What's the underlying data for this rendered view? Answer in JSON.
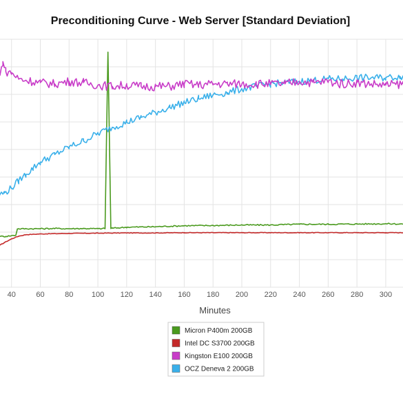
{
  "chart_data": {
    "type": "line",
    "title": "Preconditioning Curve - Web Server [Standard Deviation]",
    "xlabel": "Minutes",
    "ylabel": "",
    "xlim": [
      32,
      312
    ],
    "ylim": [
      0,
      100
    ],
    "x_ticks": [
      40,
      60,
      80,
      100,
      120,
      140,
      160,
      180,
      200,
      220,
      240,
      260,
      280,
      300
    ],
    "y_tick_labels_visible": false,
    "grid": true,
    "legend_position": "bottom-center",
    "colors": {
      "Micron P400m 200GB": "#4a9a1e",
      "Intel DC S3700 200GB": "#c42a2a",
      "Kingston E100 200GB": "#c83cc8",
      "OCZ Deneva 2 200GB": "#3ab0ea"
    },
    "series": [
      {
        "name": "Micron P400m 200GB",
        "x": [
          32,
          36,
          40,
          43,
          44,
          50,
          60,
          70,
          80,
          90,
          100,
          105,
          106,
          107,
          108,
          109,
          110,
          120,
          140,
          160,
          180,
          200,
          220,
          240,
          260,
          280,
          300,
          312
        ],
        "values": [
          20.5,
          20.5,
          20.8,
          21.0,
          23.5,
          23.6,
          23.6,
          23.7,
          23.6,
          23.7,
          23.6,
          23.7,
          60.0,
          94.8,
          60.0,
          23.8,
          23.8,
          24.2,
          24.4,
          24.8,
          24.9,
          25.1,
          25.1,
          25.4,
          25.4,
          25.5,
          25.6,
          25.5
        ]
      },
      {
        "name": "Intel DC S3700 200GB",
        "x": [
          32,
          35,
          40,
          45,
          50,
          60,
          80,
          100,
          120,
          140,
          160,
          180,
          200,
          220,
          240,
          260,
          280,
          300,
          312
        ],
        "values": [
          17.0,
          18.0,
          19.5,
          20.6,
          21.2,
          21.5,
          21.7,
          21.8,
          21.9,
          21.9,
          22.0,
          22.0,
          22.0,
          22.0,
          22.0,
          22.0,
          22.0,
          22.0,
          22.0
        ]
      },
      {
        "name": "Kingston E100 200GB",
        "x": [
          32,
          34,
          36,
          40,
          45,
          50,
          60,
          70,
          80,
          90,
          100,
          110,
          120,
          130,
          140,
          150,
          160,
          170,
          180,
          190,
          200,
          210,
          220,
          230,
          240,
          250,
          260,
          270,
          280,
          290,
          300,
          312
        ],
        "values": [
          85.5,
          91.0,
          87.0,
          86.5,
          84.0,
          83.5,
          82.5,
          82.0,
          83.0,
          82.5,
          81.5,
          81.0,
          81.5,
          81.0,
          81.0,
          81.0,
          82.0,
          81.5,
          82.0,
          82.0,
          82.0,
          82.0,
          82.0,
          82.0,
          83.0,
          82.5,
          83.0,
          82.0,
          82.5,
          82.0,
          81.5,
          82.0
        ]
      },
      {
        "name": "OCZ Deneva 2 200GB",
        "x": [
          32,
          35,
          40,
          45,
          50,
          55,
          60,
          70,
          80,
          90,
          100,
          110,
          120,
          130,
          140,
          150,
          160,
          170,
          180,
          190,
          200,
          210,
          220,
          230,
          240,
          250,
          260,
          270,
          280,
          290,
          300,
          310,
          312
        ],
        "values": [
          37.5,
          38.0,
          40.0,
          43.0,
          45.5,
          48.0,
          50.5,
          53.5,
          56.5,
          59.0,
          62.0,
          64.5,
          66.5,
          68.5,
          70.5,
          72.5,
          74.5,
          76.0,
          77.5,
          78.5,
          80.0,
          81.0,
          82.0,
          82.5,
          83.0,
          83.5,
          84.0,
          84.0,
          84.5,
          84.5,
          84.5,
          85.0,
          85.0
        ]
      }
    ]
  }
}
